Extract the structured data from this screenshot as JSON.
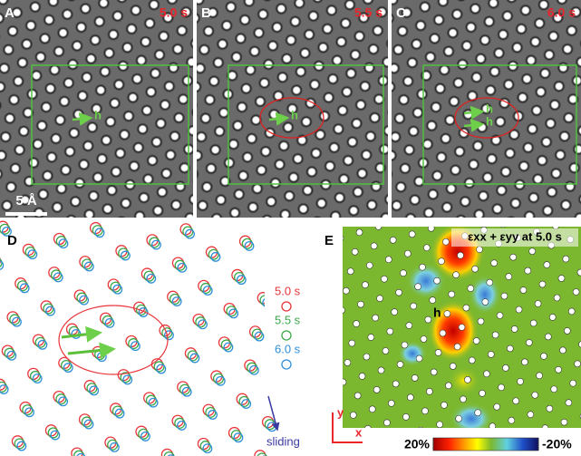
{
  "panels": [
    {
      "label": "A",
      "time": "5.0 s",
      "defect_labels": [
        "h"
      ]
    },
    {
      "label": "B",
      "time": "5.5 s",
      "defect_labels": [
        "h"
      ]
    },
    {
      "label": "C",
      "time": "6.0 s",
      "defect_labels": [
        "h",
        "h"
      ]
    }
  ],
  "scale_bar": "5 Å",
  "panel_d": {
    "label": "D",
    "legend": [
      {
        "name": "5.0 s",
        "color": "#e8353a"
      },
      {
        "name": "5.5 s",
        "color": "#3aa84a"
      },
      {
        "name": "6.0 s",
        "color": "#2f8fd8"
      }
    ],
    "annotation": "sliding"
  },
  "panel_e": {
    "label": "E",
    "title": "εxx + εyy at 5.0 s",
    "defect_label": "h",
    "x_axis": "x",
    "y_axis": "y",
    "colorbar": {
      "ticks": [
        {
          "value": 20,
          "label": "20%"
        },
        {
          "value": -20,
          "label": "-20%"
        }
      ]
    }
  }
}
